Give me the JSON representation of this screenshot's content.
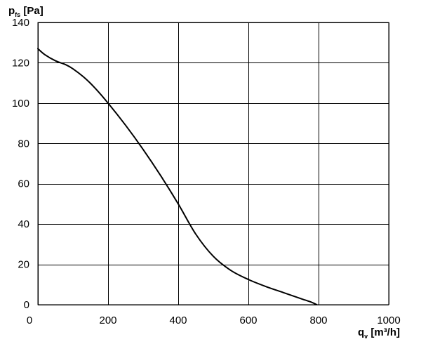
{
  "chart_data": {
    "type": "line",
    "ylabel": {
      "main": "p",
      "sub": "fs",
      "unit": " [Pa]"
    },
    "xlabel": {
      "main": "q",
      "sub": "v",
      "unit": " [m³/h]"
    },
    "xlim": [
      0,
      1000
    ],
    "ylim": [
      0,
      140
    ],
    "x_ticks": [
      0,
      200,
      400,
      600,
      800,
      1000
    ],
    "y_ticks": [
      0,
      20,
      40,
      60,
      80,
      100,
      120,
      140
    ],
    "grid": true,
    "legend": "none",
    "series": [
      {
        "color": "#000000",
        "x": [
          0,
          20,
          50,
          80,
          100,
          130,
          160,
          200,
          250,
          300,
          350,
          400,
          450,
          500,
          550,
          600,
          650,
          700,
          750,
          780,
          795
        ],
        "y": [
          127,
          124,
          121,
          119,
          117,
          113,
          108,
          100,
          89,
          77,
          64,
          50,
          35,
          24,
          17,
          12.5,
          9,
          6,
          3,
          1.2,
          0
        ]
      }
    ]
  }
}
